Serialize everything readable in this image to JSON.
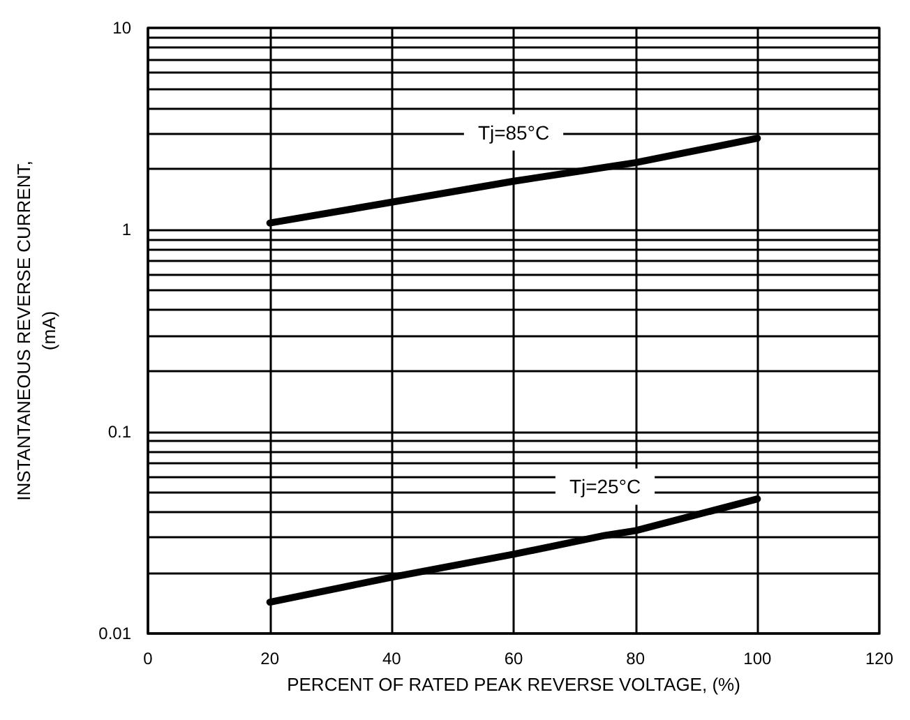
{
  "chart_data": {
    "type": "line",
    "xlabel": "PERCENT OF RATED PEAK REVERSE VOLTAGE, (%)",
    "ylabel": "INSTANTANEOUS REVERSE CURRENT,\n(mA)",
    "series": [
      {
        "name": "Tj=85°C",
        "color": "#000000",
        "x": [
          20,
          40,
          60,
          80,
          100
        ],
        "values": [
          1.08,
          1.37,
          1.74,
          2.15,
          2.84
        ]
      },
      {
        "name": "Tj=25°C",
        "color": "#000000",
        "x": [
          20,
          40,
          60,
          75,
          80,
          100
        ],
        "values": [
          0.0143,
          0.019,
          0.0247,
          0.0306,
          0.0323,
          0.0464
        ]
      }
    ],
    "xlim": [
      0,
      120
    ],
    "xticks": [
      0,
      20,
      40,
      60,
      80,
      100,
      120
    ],
    "ylim": [
      0.01,
      10
    ],
    "log": "y",
    "yticks": [
      {
        "value": 0.01,
        "label": "0.01"
      },
      {
        "value": 0.02,
        "label": null
      },
      {
        "value": 0.03,
        "label": null
      },
      {
        "value": 0.04,
        "label": null
      },
      {
        "value": 0.05,
        "label": null
      },
      {
        "value": 0.06,
        "label": null
      },
      {
        "value": 0.07,
        "label": null
      },
      {
        "value": 0.08,
        "label": null
      },
      {
        "value": 0.09,
        "label": null
      },
      {
        "value": 0.1,
        "label": "0.1"
      },
      {
        "value": 0.2,
        "label": null
      },
      {
        "value": 0.3,
        "label": null
      },
      {
        "value": 0.4,
        "label": null
      },
      {
        "value": 0.5,
        "label": null
      },
      {
        "value": 0.6,
        "label": null
      },
      {
        "value": 0.7,
        "label": null
      },
      {
        "value": 0.8,
        "label": null
      },
      {
        "value": 0.9,
        "label": null
      },
      {
        "value": 1,
        "label": "1"
      },
      {
        "value": 2,
        "label": null
      },
      {
        "value": 3,
        "label": null
      },
      {
        "value": 4,
        "label": null
      },
      {
        "value": 5,
        "label": null
      },
      {
        "value": 6,
        "label": null
      },
      {
        "value": 7,
        "label": null
      },
      {
        "value": 8,
        "label": null
      },
      {
        "value": 9,
        "label": null
      },
      {
        "value": 10,
        "label": "10"
      }
    ],
    "grid": true,
    "legend": false,
    "marker": "none",
    "line_style": "solid"
  }
}
